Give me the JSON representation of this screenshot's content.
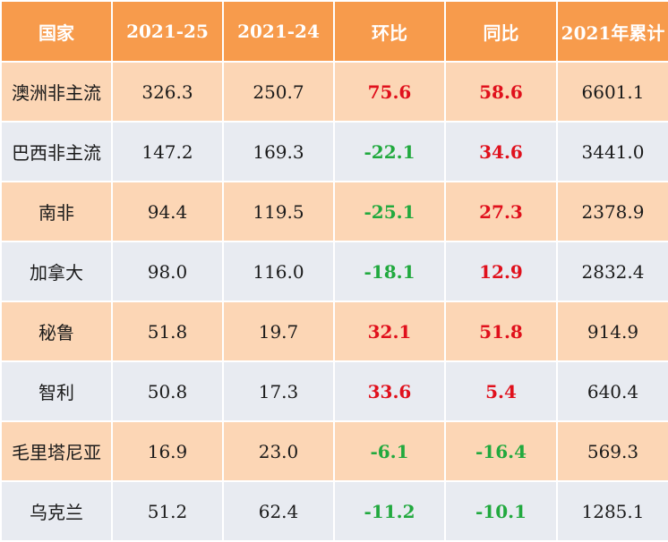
{
  "headers": [
    "国家",
    "2021-25",
    "2021-24",
    "环比",
    "同比",
    "2021年累计"
  ],
  "colors": {
    "header_bg": "#f79b4c",
    "row_odd_bg": "#fcd6b5",
    "row_even_bg": "#e8ebf1",
    "positive": "#e0101c",
    "negative": "#21a93e"
  },
  "rows": [
    {
      "country": "澳洲非主流",
      "w25": "326.3",
      "w24": "250.7",
      "mom": "75.6",
      "yoy": "58.6",
      "ytd": "6601.1"
    },
    {
      "country": "巴西非主流",
      "w25": "147.2",
      "w24": "169.3",
      "mom": "-22.1",
      "yoy": "34.6",
      "ytd": "3441.0"
    },
    {
      "country": "南非",
      "w25": "94.4",
      "w24": "119.5",
      "mom": "-25.1",
      "yoy": "27.3",
      "ytd": "2378.9"
    },
    {
      "country": "加拿大",
      "w25": "98.0",
      "w24": "116.0",
      "mom": "-18.1",
      "yoy": "12.9",
      "ytd": "2832.4"
    },
    {
      "country": "秘鲁",
      "w25": "51.8",
      "w24": "19.7",
      "mom": "32.1",
      "yoy": "51.8",
      "ytd": "914.9"
    },
    {
      "country": "智利",
      "w25": "50.8",
      "w24": "17.3",
      "mom": "33.6",
      "yoy": "5.4",
      "ytd": "640.4"
    },
    {
      "country": "毛里塔尼亚",
      "w25": "16.9",
      "w24": "23.0",
      "mom": "-6.1",
      "yoy": "-16.4",
      "ytd": "569.3"
    },
    {
      "country": "乌克兰",
      "w25": "51.2",
      "w24": "62.4",
      "mom": "-11.2",
      "yoy": "-10.1",
      "ytd": "1285.1"
    }
  ]
}
